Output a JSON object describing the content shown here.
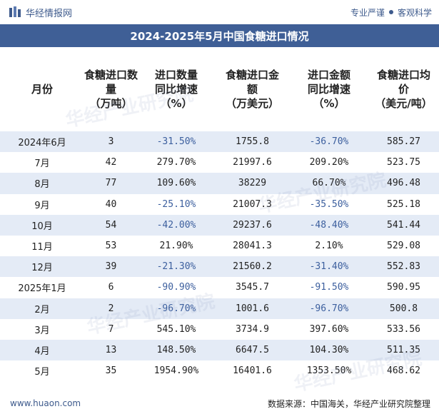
{
  "header": {
    "brand": "华经情报网",
    "slogan_left": "专业严谨",
    "slogan_right": "客观科学"
  },
  "title": "2024-2025年5月中国食糖进口情况",
  "columns": [
    "月份",
    "食糖进口数\n量\n（万吨）",
    "进口数量\n同比增速\n（%）",
    "食糖进口金\n额\n（万美元）",
    "进口金额\n同比增速\n（%）",
    "食糖进口均\n价\n（美元/吨）"
  ],
  "rows": [
    {
      "month": "2024年6月",
      "qty": "3",
      "qty_yoy": "-31.50%",
      "amount": "1755.8",
      "amount_yoy": "-36.70%",
      "price": "585.27"
    },
    {
      "month": "7月",
      "qty": "42",
      "qty_yoy": "279.70%",
      "amount": "21997.6",
      "amount_yoy": "209.20%",
      "price": "523.75"
    },
    {
      "month": "8月",
      "qty": "77",
      "qty_yoy": "109.60%",
      "amount": "38229",
      "amount_yoy": "66.70%",
      "price": "496.48"
    },
    {
      "month": "9月",
      "qty": "40",
      "qty_yoy": "-25.10%",
      "amount": "21007.3",
      "amount_yoy": "-35.50%",
      "price": "525.18"
    },
    {
      "month": "10月",
      "qty": "54",
      "qty_yoy": "-42.00%",
      "amount": "29237.6",
      "amount_yoy": "-48.40%",
      "price": "541.44"
    },
    {
      "month": "11月",
      "qty": "53",
      "qty_yoy": "21.90%",
      "amount": "28041.3",
      "amount_yoy": "2.10%",
      "price": "529.08"
    },
    {
      "month": "12月",
      "qty": "39",
      "qty_yoy": "-21.30%",
      "amount": "21560.2",
      "amount_yoy": "-31.40%",
      "price": "552.83"
    },
    {
      "month": "2025年1月",
      "qty": "6",
      "qty_yoy": "-90.90%",
      "amount": "3545.7",
      "amount_yoy": "-91.50%",
      "price": "590.95"
    },
    {
      "month": "2月",
      "qty": "2",
      "qty_yoy": "-96.70%",
      "amount": "1001.6",
      "amount_yoy": "-96.70%",
      "price": "500.8"
    },
    {
      "month": "3月",
      "qty": "7",
      "qty_yoy": "545.10%",
      "amount": "3734.9",
      "amount_yoy": "397.60%",
      "price": "533.56"
    },
    {
      "month": "4月",
      "qty": "13",
      "qty_yoy": "148.50%",
      "amount": "6647.5",
      "amount_yoy": "104.30%",
      "price": "511.35"
    },
    {
      "month": "5月",
      "qty": "35",
      "qty_yoy": "1954.90%",
      "amount": "16401.6",
      "amount_yoy": "1353.50%",
      "price": "468.62"
    }
  ],
  "footer": {
    "url": "www.huaon.com",
    "source": "数据来源：中国海关，华经产业研究院整理"
  },
  "watermark": "华经产业研究院",
  "colors": {
    "title_bg": "#3f5f96",
    "row_alt_bg": "#e4ebf6",
    "negative_text": "#3c5f9e"
  }
}
